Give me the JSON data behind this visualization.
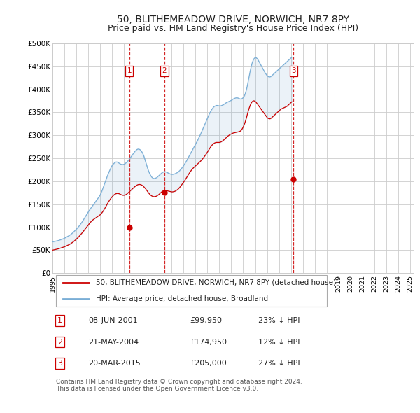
{
  "title": "50, BLITHEMEADOW DRIVE, NORWICH, NR7 8PY",
  "subtitle": "Price paid vs. HM Land Registry's House Price Index (HPI)",
  "title_fontsize": 10,
  "subtitle_fontsize": 9,
  "background_color": "#ffffff",
  "plot_bg_color": "#ffffff",
  "grid_color": "#cccccc",
  "hpi_color": "#7aaed6",
  "price_color": "#cc0000",
  "transaction_line_color": "#cc0000",
  "transaction_box_color": "#cc0000",
  "ylim": [
    0,
    500000
  ],
  "yticks": [
    0,
    50000,
    100000,
    150000,
    200000,
    250000,
    300000,
    350000,
    400000,
    450000,
    500000
  ],
  "ytick_labels": [
    "£0",
    "£50K",
    "£100K",
    "£150K",
    "£200K",
    "£250K",
    "£300K",
    "£350K",
    "£400K",
    "£450K",
    "£500K"
  ],
  "transactions": [
    {
      "date_num": 2001.44,
      "price": 99950,
      "label": "1"
    },
    {
      "date_num": 2004.39,
      "price": 174950,
      "label": "2"
    },
    {
      "date_num": 2015.22,
      "price": 205000,
      "label": "3"
    }
  ],
  "transaction_table": [
    {
      "label": "1",
      "date": "08-JUN-2001",
      "price": "£99,950",
      "hpi": "23% ↓ HPI"
    },
    {
      "label": "2",
      "date": "21-MAY-2004",
      "price": "£174,950",
      "hpi": "12% ↓ HPI"
    },
    {
      "label": "3",
      "date": "20-MAR-2015",
      "price": "£205,000",
      "hpi": "27% ↓ HPI"
    }
  ],
  "legend_entries": [
    "50, BLITHEMEADOW DRIVE, NORWICH, NR7 8PY (detached house)",
    "HPI: Average price, detached house, Broadland"
  ],
  "footer_text": "Contains HM Land Registry data © Crown copyright and database right 2024.\nThis data is licensed under the Open Government Licence v3.0.",
  "hpi_data_monthly": {
    "start_year": 1995,
    "start_month": 1,
    "values": [
      68000,
      68500,
      69000,
      69500,
      70000,
      70500,
      71000,
      71800,
      72600,
      73400,
      74200,
      75000,
      76000,
      77200,
      78400,
      79600,
      80800,
      82000,
      83500,
      85200,
      87000,
      89000,
      91200,
      93500,
      95800,
      98000,
      100500,
      103000,
      106000,
      109000,
      112000,
      115500,
      119000,
      122500,
      126000,
      129500,
      133000,
      136500,
      139500,
      142500,
      145500,
      148500,
      151500,
      154500,
      157500,
      160500,
      163500,
      166500,
      170000,
      175000,
      180000,
      186000,
      192000,
      198000,
      204000,
      210000,
      215500,
      220500,
      225500,
      230000,
      234000,
      237000,
      239000,
      241000,
      242000,
      242000,
      241000,
      239500,
      238000,
      237000,
      236500,
      236500,
      237000,
      238000,
      240000,
      242000,
      244500,
      247000,
      250000,
      253000,
      256000,
      259000,
      262000,
      265000,
      267000,
      269000,
      270000,
      270000,
      269000,
      267000,
      264000,
      260000,
      255000,
      248000,
      241000,
      234000,
      227000,
      221000,
      216000,
      212000,
      209000,
      207000,
      206000,
      206000,
      207000,
      208000,
      210000,
      212000,
      214000,
      216000,
      218000,
      219500,
      220500,
      221000,
      220500,
      219500,
      218500,
      217500,
      216500,
      215500,
      215000,
      215000,
      215500,
      216000,
      217000,
      218000,
      219500,
      221000,
      223000,
      225500,
      228000,
      231000,
      234000,
      237500,
      241000,
      244500,
      248500,
      252500,
      256500,
      260500,
      264500,
      268500,
      272500,
      276500,
      280500,
      284500,
      288500,
      293000,
      297500,
      302000,
      307000,
      312000,
      317000,
      322000,
      327000,
      332000,
      337000,
      342000,
      347000,
      351000,
      355000,
      358000,
      361000,
      363000,
      364000,
      365000,
      365000,
      364500,
      364000,
      364000,
      364500,
      365500,
      366500,
      368000,
      369500,
      371000,
      372000,
      373000,
      374000,
      375000,
      376000,
      377500,
      379000,
      380000,
      381000,
      381500,
      381500,
      381000,
      380000,
      379000,
      379000,
      380000,
      382000,
      385000,
      390000,
      397000,
      406000,
      417000,
      428000,
      439000,
      449000,
      457000,
      463000,
      467000,
      469000,
      469000,
      467000,
      464000,
      460000,
      456000,
      452000,
      448000,
      444000,
      440000,
      436000,
      433000,
      430000,
      428000,
      427000,
      427000,
      428000,
      430000,
      432000,
      434000,
      436000,
      438000,
      440000,
      442000,
      444000,
      446000,
      448000,
      450000,
      452000,
      454000,
      456000,
      458000,
      460000,
      462000,
      464000,
      466000,
      468000,
      470000
    ]
  },
  "price_paid_monthly": {
    "start_year": 1995,
    "start_month": 1,
    "values": [
      50000,
      50500,
      51000,
      51500,
      52000,
      52500,
      53000,
      53700,
      54400,
      55100,
      55800,
      56500,
      57300,
      58300,
      59300,
      60300,
      61300,
      62300,
      63500,
      65000,
      66500,
      68200,
      70000,
      72000,
      74000,
      76000,
      78000,
      80500,
      83000,
      85500,
      88000,
      90800,
      93600,
      96400,
      99200,
      102000,
      105000,
      107800,
      110200,
      112500,
      114500,
      116500,
      118000,
      119500,
      121000,
      122500,
      124000,
      125500,
      127000,
      129500,
      132000,
      135000,
      138500,
      142000,
      146000,
      150000,
      153800,
      157200,
      160500,
      163500,
      166000,
      168500,
      170500,
      172000,
      173000,
      173500,
      173500,
      173000,
      172000,
      171000,
      170000,
      169500,
      169500,
      170000,
      171000,
      172500,
      174500,
      176500,
      178500,
      180500,
      182500,
      184500,
      186500,
      188500,
      190000,
      191500,
      192500,
      193000,
      193000,
      192500,
      191500,
      190000,
      188000,
      185500,
      183000,
      180000,
      177000,
      174000,
      171500,
      169500,
      168000,
      167000,
      166500,
      166500,
      167000,
      168000,
      169500,
      171000,
      173000,
      175000,
      177000,
      178500,
      179500,
      180000,
      180000,
      179500,
      179000,
      178500,
      178000,
      177500,
      177000,
      177000,
      177500,
      178000,
      179000,
      180500,
      182000,
      184000,
      186500,
      189000,
      192000,
      195000,
      198000,
      201000,
      204500,
      208000,
      211500,
      215000,
      218500,
      221500,
      224500,
      227000,
      229500,
      231500,
      233500,
      235500,
      237500,
      239500,
      241500,
      243500,
      246000,
      248500,
      251000,
      254000,
      257000,
      260000,
      263500,
      267000,
      270500,
      274000,
      277000,
      279500,
      281500,
      283000,
      284000,
      284500,
      284500,
      284500,
      284500,
      285000,
      286000,
      287500,
      289000,
      291000,
      293000,
      295000,
      297000,
      299000,
      300500,
      302000,
      303000,
      304000,
      305000,
      305500,
      306000,
      306500,
      307000,
      307500,
      308000,
      309000,
      311000,
      314000,
      318000,
      323000,
      329000,
      336000,
      344000,
      352000,
      359000,
      365000,
      370000,
      373000,
      375000,
      375000,
      374000,
      372000,
      369000,
      366000,
      363000,
      360000,
      357000,
      354000,
      351000,
      348000,
      345000,
      342000,
      339000,
      337000,
      336000,
      336000,
      337000,
      339000,
      341000,
      343000,
      345000,
      347000,
      349000,
      351000,
      353000,
      355000,
      357000,
      358000,
      359000,
      360000,
      361000,
      362000,
      363000,
      365000,
      367000,
      369000,
      371000,
      373000
    ]
  }
}
